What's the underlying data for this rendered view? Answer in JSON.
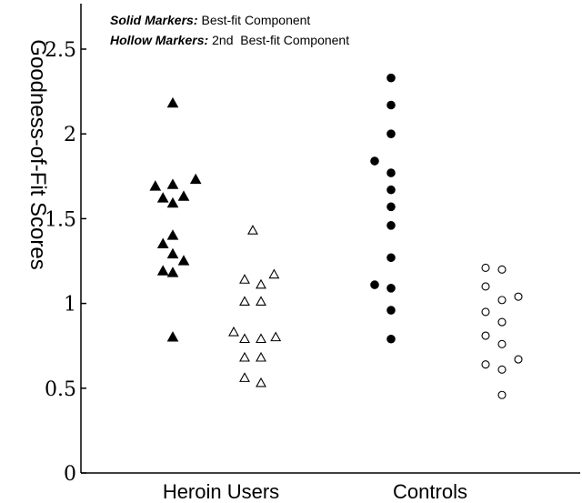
{
  "chart_data": {
    "type": "scatter",
    "ylabel": "Goodness-of-Fit Scores",
    "xlabel": "",
    "ylim": [
      0,
      2.6
    ],
    "yticks": [
      "0",
      "0.5",
      "1",
      "1.5",
      "2",
      "2.5"
    ],
    "categories": [
      "Heroin Users",
      "Controls"
    ],
    "legend": {
      "line1_bold": "Solid Markers:",
      "line1_text": "Best-fit Component",
      "line2_bold": "Hollow Markers:",
      "line2_text": "2nd  Best-fit Component",
      "position": "top-left"
    },
    "groups": [
      {
        "category": "Heroin Users",
        "component": "best-fit",
        "marker": "triangle",
        "filled": true,
        "points": [
          {
            "x": 0.0,
            "y": 2.18
          },
          {
            "x": -0.32,
            "y": 1.69
          },
          {
            "x": 0.0,
            "y": 1.7
          },
          {
            "x": 0.42,
            "y": 1.73
          },
          {
            "x": -0.18,
            "y": 1.62
          },
          {
            "x": 0.2,
            "y": 1.63
          },
          {
            "x": 0.0,
            "y": 1.59
          },
          {
            "x": 0.0,
            "y": 1.4
          },
          {
            "x": -0.18,
            "y": 1.35
          },
          {
            "x": 0.0,
            "y": 1.29
          },
          {
            "x": 0.2,
            "y": 1.25
          },
          {
            "x": -0.18,
            "y": 1.19
          },
          {
            "x": 0.0,
            "y": 1.18
          },
          {
            "x": 0.0,
            "y": 0.8
          }
        ]
      },
      {
        "category": "Heroin Users",
        "component": "2nd best-fit",
        "marker": "triangle",
        "filled": false,
        "points": [
          {
            "x": 0.0,
            "y": 1.43
          },
          {
            "x": -0.15,
            "y": 1.14
          },
          {
            "x": 0.15,
            "y": 1.11
          },
          {
            "x": 0.39,
            "y": 1.17
          },
          {
            "x": -0.15,
            "y": 1.01
          },
          {
            "x": 0.15,
            "y": 1.01
          },
          {
            "x": -0.35,
            "y": 0.83
          },
          {
            "x": -0.15,
            "y": 0.79
          },
          {
            "x": 0.15,
            "y": 0.79
          },
          {
            "x": 0.42,
            "y": 0.8
          },
          {
            "x": -0.15,
            "y": 0.68
          },
          {
            "x": 0.15,
            "y": 0.68
          },
          {
            "x": -0.15,
            "y": 0.56
          },
          {
            "x": 0.15,
            "y": 0.53
          }
        ]
      },
      {
        "category": "Controls",
        "component": "best-fit",
        "marker": "circle",
        "filled": true,
        "points": [
          {
            "x": 0.0,
            "y": 2.33
          },
          {
            "x": 0.0,
            "y": 2.17
          },
          {
            "x": 0.0,
            "y": 2.0
          },
          {
            "x": -0.3,
            "y": 1.84
          },
          {
            "x": 0.0,
            "y": 1.77
          },
          {
            "x": 0.0,
            "y": 1.67
          },
          {
            "x": 0.0,
            "y": 1.57
          },
          {
            "x": 0.0,
            "y": 1.46
          },
          {
            "x": 0.0,
            "y": 1.27
          },
          {
            "x": -0.3,
            "y": 1.11
          },
          {
            "x": 0.0,
            "y": 1.09
          },
          {
            "x": 0.0,
            "y": 0.96
          },
          {
            "x": 0.0,
            "y": 0.79
          }
        ]
      },
      {
        "category": "Controls",
        "component": "2nd best-fit",
        "marker": "circle",
        "filled": false,
        "points": [
          {
            "x": -0.15,
            "y": 1.21
          },
          {
            "x": 0.15,
            "y": 1.2
          },
          {
            "x": -0.15,
            "y": 1.1
          },
          {
            "x": 0.15,
            "y": 1.02
          },
          {
            "x": 0.45,
            "y": 1.04
          },
          {
            "x": -0.15,
            "y": 0.95
          },
          {
            "x": 0.15,
            "y": 0.89
          },
          {
            "x": -0.15,
            "y": 0.81
          },
          {
            "x": 0.15,
            "y": 0.76
          },
          {
            "x": 0.45,
            "y": 0.67
          },
          {
            "x": -0.15,
            "y": 0.64
          },
          {
            "x": 0.15,
            "y": 0.61
          },
          {
            "x": 0.15,
            "y": 0.46
          }
        ]
      }
    ]
  }
}
